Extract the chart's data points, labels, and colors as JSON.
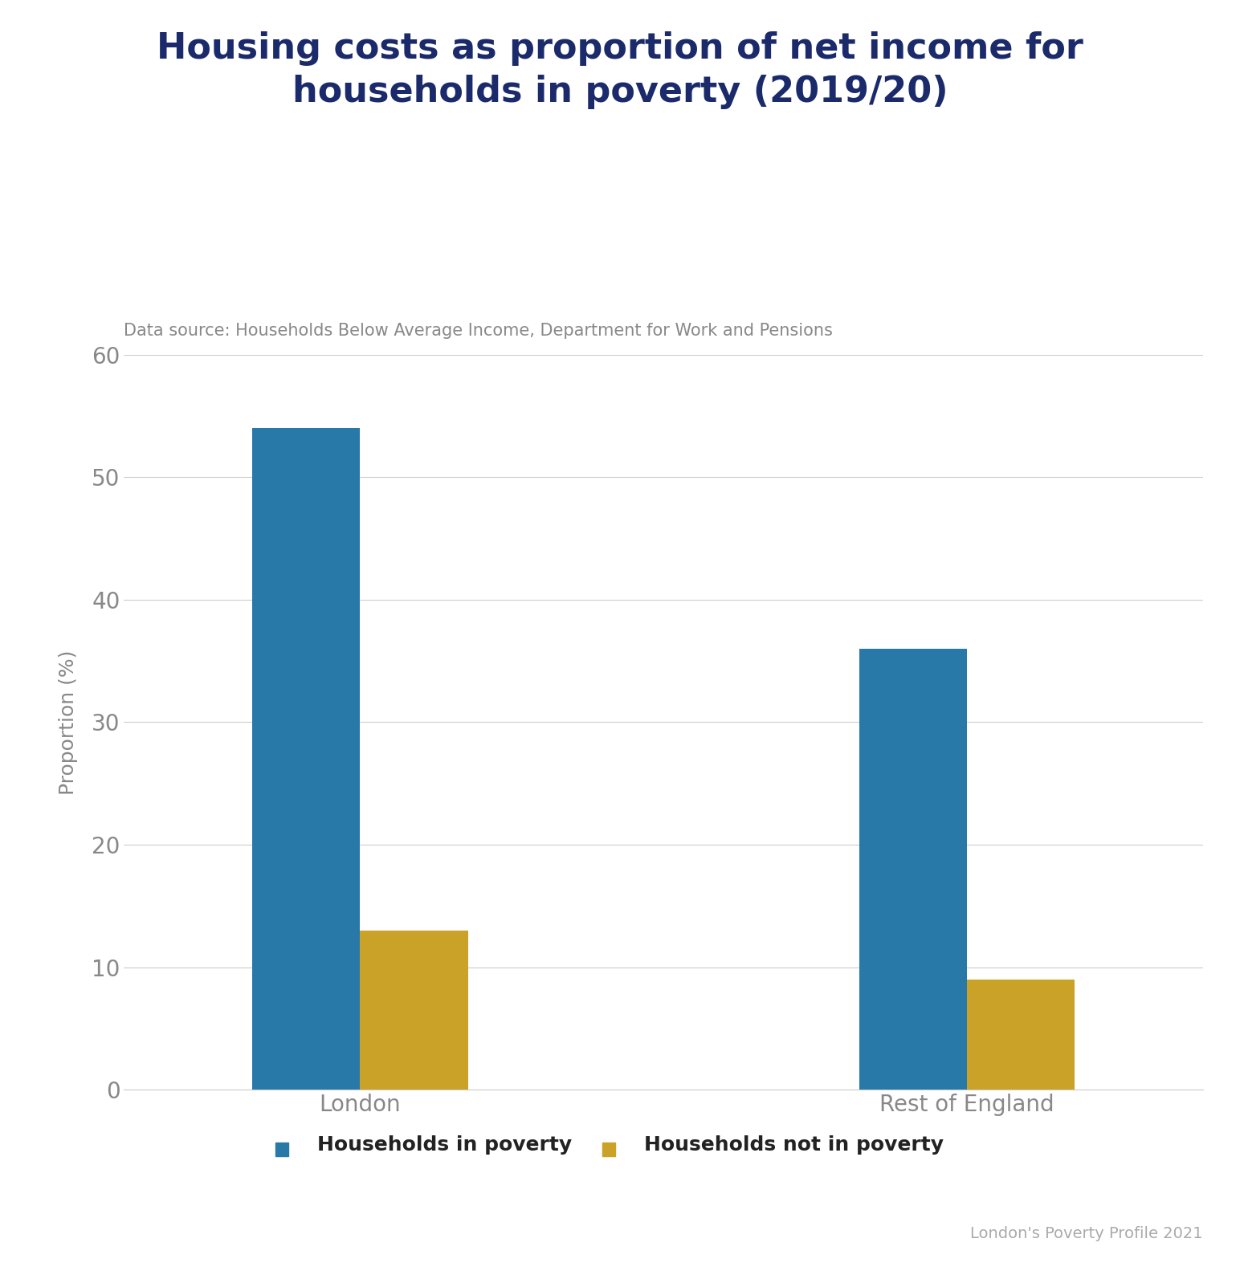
{
  "title": "Housing costs as proportion of net income for\nhouseholds in poverty (2019/20)",
  "subtitle": "Data source: Households Below Average Income, Department for Work and Pensions",
  "ylabel": "Proportion (%)",
  "footnote": "London's Poverty Profile 2021",
  "categories": [
    "London",
    "Rest of England"
  ],
  "poverty_values": [
    54,
    36
  ],
  "not_poverty_values": [
    13,
    9
  ],
  "bar_color_poverty": "#2878a8",
  "bar_color_not_poverty": "#C9A227",
  "title_color": "#1B2A6B",
  "subtitle_color": "#888888",
  "tick_label_color": "#888888",
  "ylabel_color": "#888888",
  "legend_label_poverty": "Households in poverty",
  "legend_label_not_poverty": "Households not in poverty",
  "ylim": [
    0,
    60
  ],
  "yticks": [
    0,
    10,
    20,
    30,
    40,
    50,
    60
  ],
  "bar_width": 0.32,
  "background_color": "#ffffff",
  "grid_color": "#cccccc",
  "title_fontsize": 32,
  "subtitle_fontsize": 15,
  "tick_fontsize": 20,
  "ylabel_fontsize": 18,
  "legend_fontsize": 18,
  "footnote_fontsize": 14,
  "footnote_color": "#aaaaaa"
}
